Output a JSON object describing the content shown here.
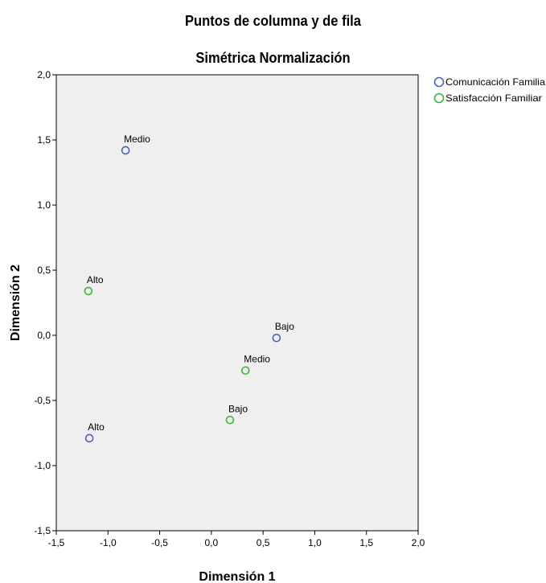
{
  "chart_data": {
    "type": "scatter",
    "title": "Puntos de columna y de fila",
    "subtitle": "Simétrica Normalización",
    "xlabel": "Dimensión 1",
    "ylabel": "Dimensión 2",
    "xlim": [
      -1.5,
      2.0
    ],
    "ylim": [
      -1.5,
      2.0
    ],
    "x_ticks": [
      "-1,5",
      "-1,0",
      "-0,5",
      "0,0",
      "0,5",
      "1,0",
      "1,5",
      "2,0"
    ],
    "y_ticks": [
      "2,0",
      "1,5",
      "1,0",
      "0,5",
      "0,0",
      "-0,5",
      "-1,0",
      "-1,5"
    ],
    "grid": false,
    "legend_position": "top-right",
    "series": [
      {
        "name": "Comunicación Familia",
        "color": "#4a64b4",
        "points": [
          {
            "label": "Medio",
            "x": -0.83,
            "y": 1.42
          },
          {
            "label": "Bajo",
            "x": 0.63,
            "y": -0.02
          },
          {
            "label": "Alto",
            "x": -1.18,
            "y": -0.79
          }
        ]
      },
      {
        "name": "Satisfacción Familiar",
        "color": "#3db53d",
        "points": [
          {
            "label": "Alto",
            "x": -1.19,
            "y": 0.34
          },
          {
            "label": "Medio",
            "x": 0.33,
            "y": -0.27
          },
          {
            "label": "Bajo",
            "x": 0.18,
            "y": -0.65
          }
        ]
      }
    ]
  }
}
